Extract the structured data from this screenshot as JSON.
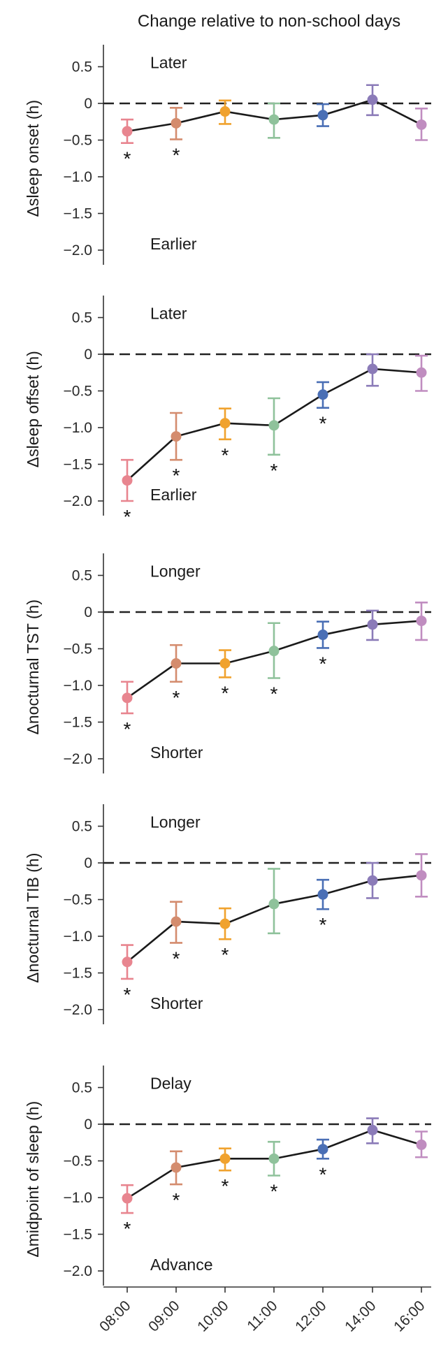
{
  "title": "Change relative to non-school days",
  "x_categories": [
    "08:00",
    "09:00",
    "10:00",
    "11:00",
    "12:00",
    "14:00",
    "16:00"
  ],
  "colors": [
    "#e8858f",
    "#d48c6e",
    "#f0a22e",
    "#8fc29b",
    "#4a6fb5",
    "#8b7bb8",
    "#c08dc0"
  ],
  "significance_mark": "*",
  "chart_data": [
    {
      "type": "line",
      "ylabel": "Δsleep onset (h)",
      "ylim": [
        -2.2,
        0.8
      ],
      "yticks": [
        0.5,
        0,
        -0.5,
        -1.0,
        -1.5,
        -2.0
      ],
      "ytick_labels": [
        "0.5",
        "0",
        "−0.5",
        "−1.0",
        "−1.5",
        "−2.0"
      ],
      "reference_line": 0,
      "annotation_top": "Later",
      "annotation_bottom": "Earlier",
      "values": [
        -0.38,
        -0.27,
        -0.11,
        -0.22,
        -0.16,
        0.05,
        -0.29
      ],
      "err_low": [
        -0.54,
        -0.49,
        -0.28,
        -0.47,
        -0.31,
        -0.16,
        -0.5
      ],
      "err_high": [
        -0.22,
        -0.06,
        0.04,
        0.0,
        -0.01,
        0.25,
        -0.07
      ],
      "significant": [
        true,
        true,
        false,
        false,
        false,
        false,
        false
      ]
    },
    {
      "type": "line",
      "ylabel": "Δsleep offset (h)",
      "ylim": [
        -2.2,
        0.8
      ],
      "yticks": [
        0.5,
        0,
        -0.5,
        -1.0,
        -1.5,
        -2.0
      ],
      "ytick_labels": [
        "0.5",
        "0",
        "−0.5",
        "−1.0",
        "−1.5",
        "−2.0"
      ],
      "reference_line": 0,
      "annotation_top": "Later",
      "annotation_bottom": "Earlier",
      "values": [
        -1.72,
        -1.12,
        -0.94,
        -0.97,
        -0.55,
        -0.2,
        -0.25
      ],
      "err_low": [
        -2.0,
        -1.44,
        -1.16,
        -1.37,
        -0.73,
        -0.43,
        -0.5
      ],
      "err_high": [
        -1.44,
        -0.8,
        -0.74,
        -0.6,
        -0.38,
        0.0,
        -0.02
      ],
      "significant": [
        true,
        true,
        true,
        true,
        true,
        false,
        false
      ]
    },
    {
      "type": "line",
      "ylabel": "Δnocturnal TST (h)",
      "ylim": [
        -2.2,
        0.8
      ],
      "yticks": [
        0.5,
        0,
        -0.5,
        -1.0,
        -1.5,
        -2.0
      ],
      "ytick_labels": [
        "0.5",
        "0",
        "−0.5",
        "−1.0",
        "−1.5",
        "−2.0"
      ],
      "reference_line": 0,
      "annotation_top": "Longer",
      "annotation_bottom": "Shorter",
      "values": [
        -1.17,
        -0.7,
        -0.7,
        -0.53,
        -0.31,
        -0.17,
        -0.12
      ],
      "err_low": [
        -1.38,
        -0.95,
        -0.89,
        -0.9,
        -0.49,
        -0.38,
        -0.38
      ],
      "err_high": [
        -0.95,
        -0.45,
        -0.52,
        -0.15,
        -0.13,
        0.02,
        0.13
      ],
      "significant": [
        true,
        true,
        true,
        true,
        true,
        false,
        false
      ]
    },
    {
      "type": "line",
      "ylabel": "Δnocturnal TIB (h)",
      "ylim": [
        -2.2,
        0.8
      ],
      "yticks": [
        0.5,
        0,
        -0.5,
        -1.0,
        -1.5,
        -2.0
      ],
      "ytick_labels": [
        "0.5",
        "0",
        "−0.5",
        "−1.0",
        "−1.5",
        "−2.0"
      ],
      "reference_line": 0,
      "annotation_top": "Longer",
      "annotation_bottom": "Shorter",
      "values": [
        -1.35,
        -0.8,
        -0.83,
        -0.56,
        -0.43,
        -0.24,
        -0.17
      ],
      "err_low": [
        -1.58,
        -1.09,
        -1.04,
        -0.96,
        -0.63,
        -0.48,
        -0.46
      ],
      "err_high": [
        -1.12,
        -0.53,
        -0.62,
        -0.08,
        -0.23,
        0.0,
        0.12
      ],
      "significant": [
        true,
        true,
        true,
        false,
        true,
        false,
        false
      ]
    },
    {
      "type": "line",
      "ylabel": "Δmidpoint of sleep (h)",
      "ylim": [
        -2.2,
        0.8
      ],
      "yticks": [
        0.5,
        0,
        -0.5,
        -1.0,
        -1.5,
        -2.0
      ],
      "ytick_labels": [
        "0.5",
        "0",
        "−0.5",
        "−1.0",
        "−1.5",
        "−2.0"
      ],
      "reference_line": 0,
      "annotation_top": "Delay",
      "annotation_bottom": "Advance",
      "values": [
        -1.01,
        -0.59,
        -0.47,
        -0.47,
        -0.34,
        -0.08,
        -0.28
      ],
      "err_low": [
        -1.21,
        -0.82,
        -0.63,
        -0.7,
        -0.47,
        -0.26,
        -0.45
      ],
      "err_high": [
        -0.83,
        -0.37,
        -0.33,
        -0.24,
        -0.21,
        0.08,
        -0.1
      ],
      "significant": [
        true,
        true,
        true,
        true,
        true,
        false,
        false
      ]
    }
  ]
}
